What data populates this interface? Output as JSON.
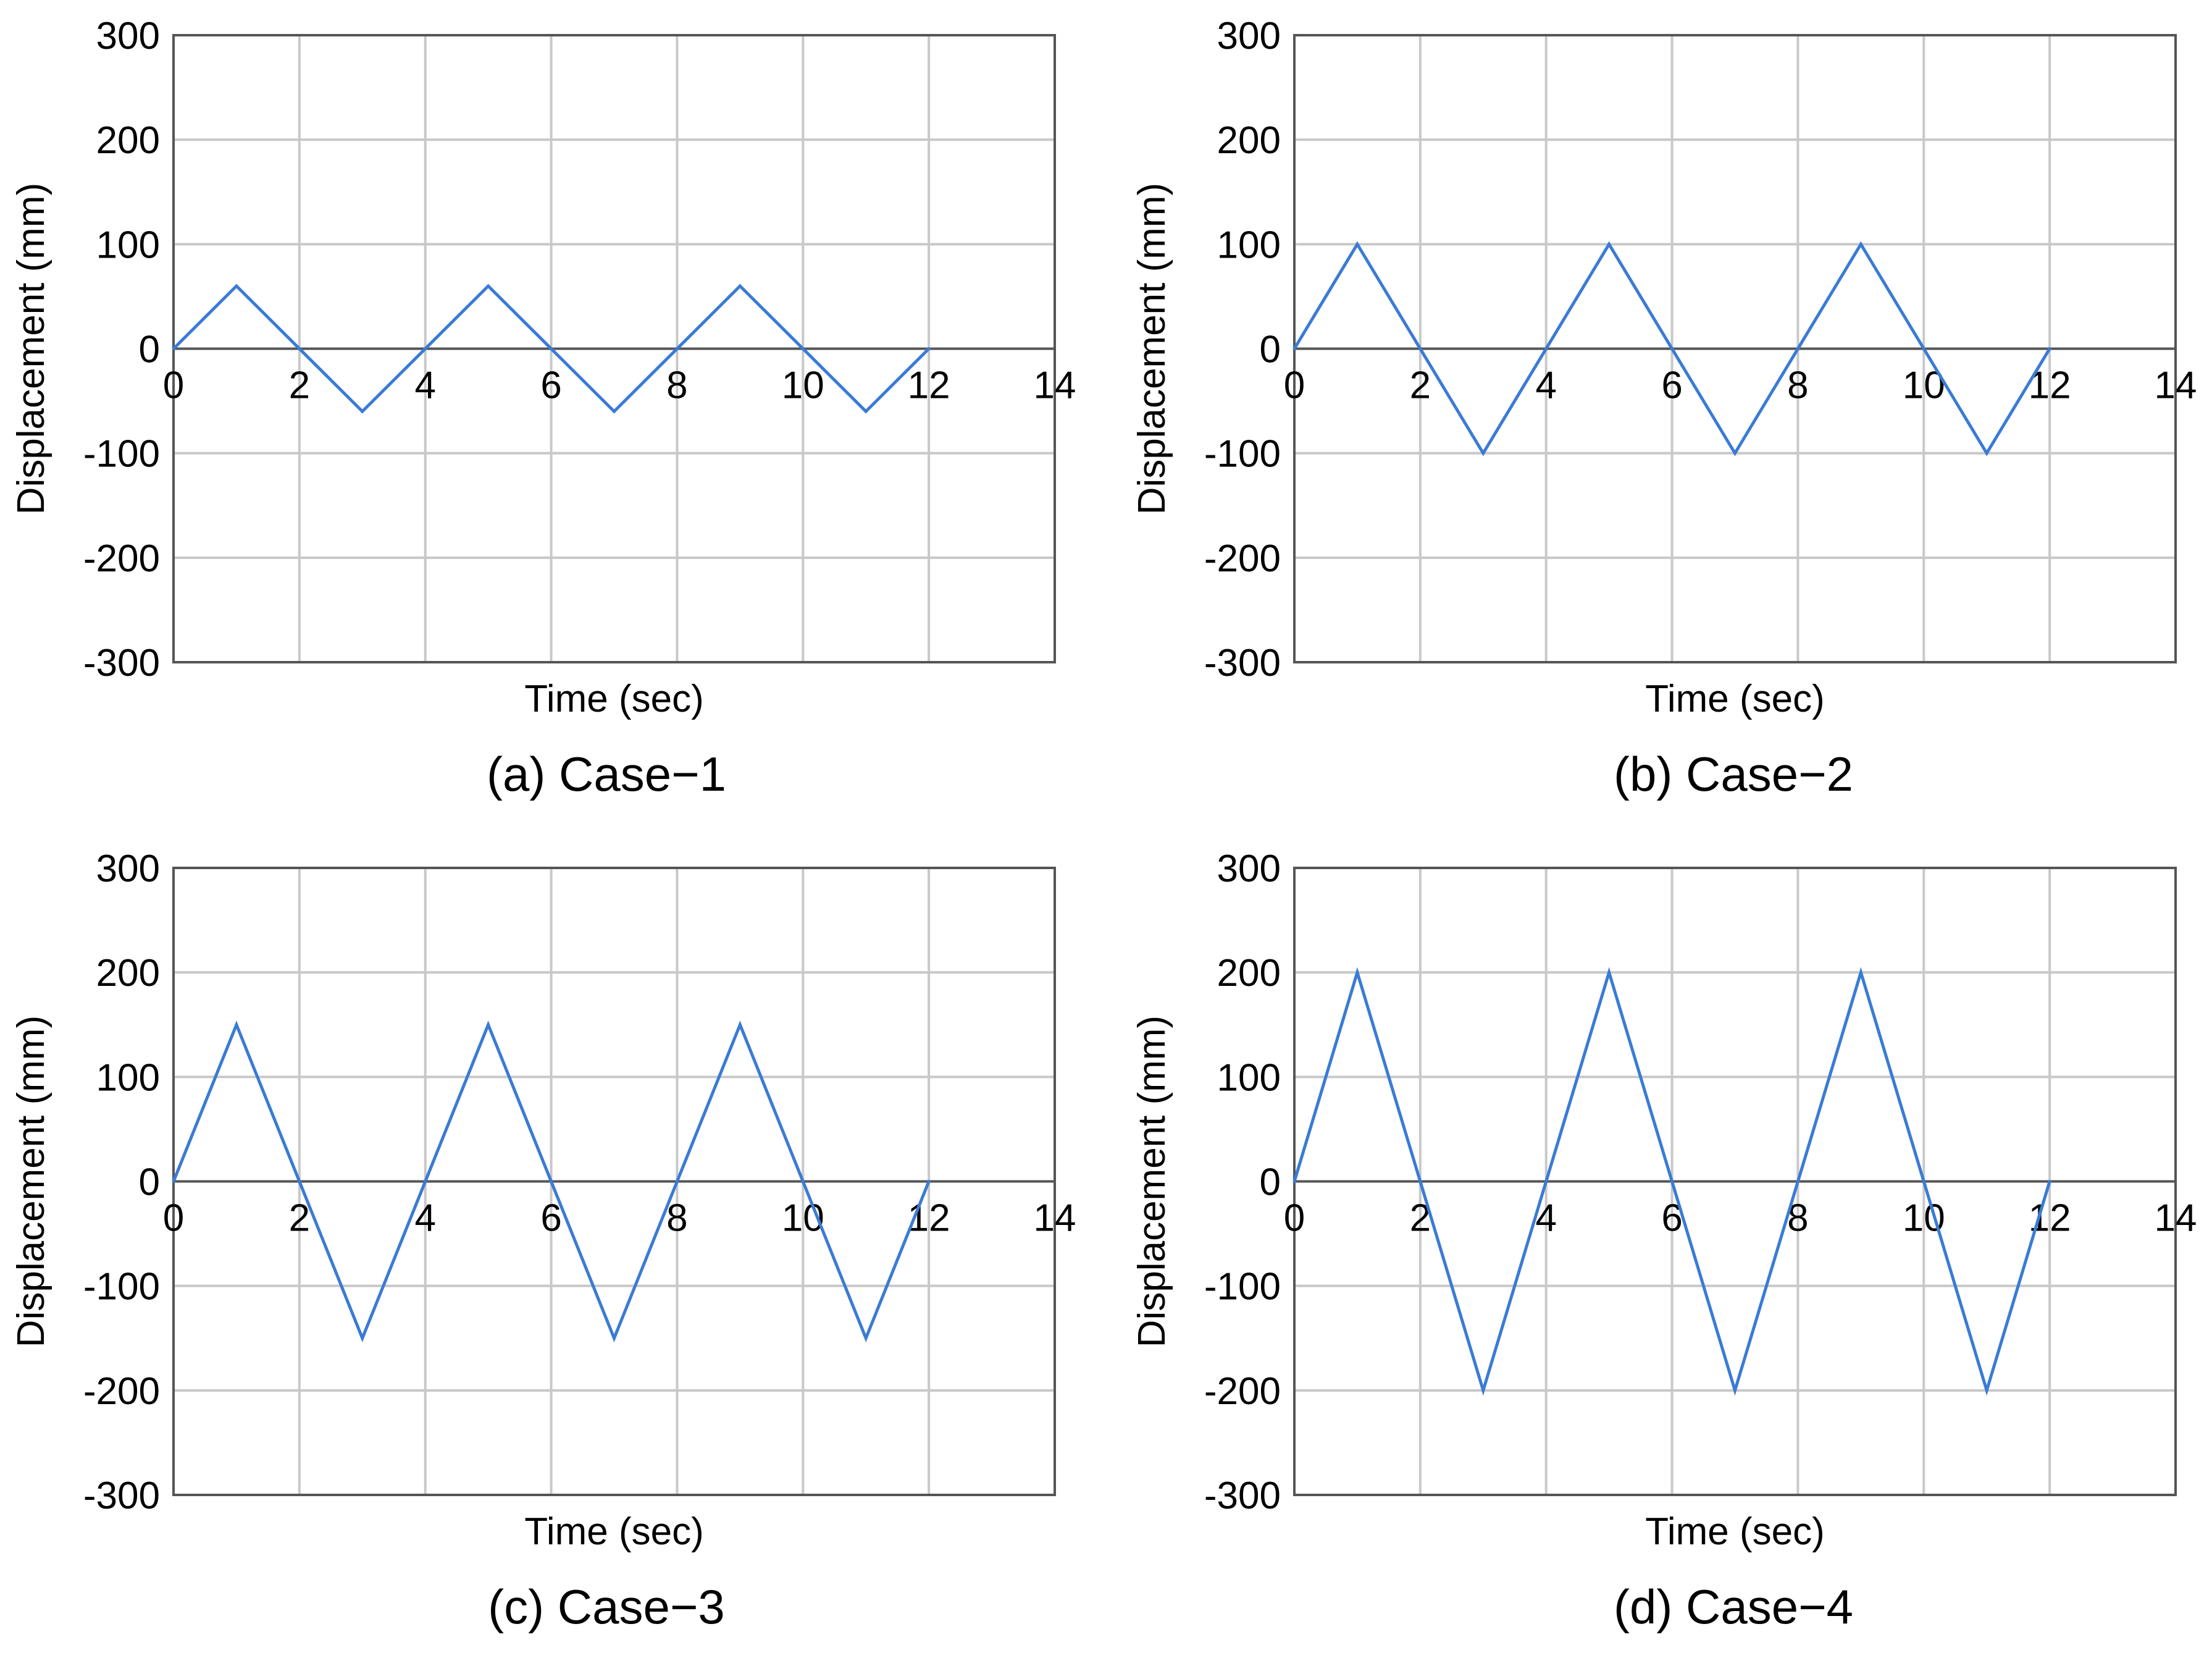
{
  "chart_data": [
    {
      "type": "line",
      "caption": "(a) Case−1",
      "xlabel": "Time (sec)",
      "ylabel": "Displacement (mm)",
      "xlim": [
        0,
        14
      ],
      "ylim": [
        -300,
        300
      ],
      "xticks": [
        "0",
        "2",
        "4",
        "6",
        "8",
        "10",
        "12",
        "14"
      ],
      "yticks": [
        "300",
        "200",
        "100",
        "0",
        "-100",
        "-200",
        "-300"
      ],
      "grid": true,
      "series": [
        {
          "name": "Displacement",
          "color": "#3a7bd5",
          "x": [
            0,
            1,
            3,
            5,
            7,
            9,
            11,
            12
          ],
          "y": [
            0,
            60,
            -60,
            60,
            -60,
            60,
            -60,
            0
          ]
        }
      ]
    },
    {
      "type": "line",
      "caption": "(b) Case−2",
      "xlabel": "Time (sec)",
      "ylabel": "Displacement (mm)",
      "xlim": [
        0,
        14
      ],
      "ylim": [
        -300,
        300
      ],
      "xticks": [
        "0",
        "2",
        "4",
        "6",
        "8",
        "10",
        "12",
        "14"
      ],
      "yticks": [
        "300",
        "200",
        "100",
        "0",
        "-100",
        "-200",
        "-300"
      ],
      "grid": true,
      "series": [
        {
          "name": "Displacement",
          "color": "#3a7bd5",
          "x": [
            0,
            1,
            3,
            5,
            7,
            9,
            11,
            12
          ],
          "y": [
            0,
            100,
            -100,
            100,
            -100,
            100,
            -100,
            0
          ]
        }
      ]
    },
    {
      "type": "line",
      "caption": "(c) Case−3",
      "xlabel": "Time (sec)",
      "ylabel": "Displacement (mm)",
      "xlim": [
        0,
        14
      ],
      "ylim": [
        -300,
        300
      ],
      "xticks": [
        "0",
        "2",
        "4",
        "6",
        "8",
        "10",
        "12",
        "14"
      ],
      "yticks": [
        "300",
        "200",
        "100",
        "0",
        "-100",
        "-200",
        "-300"
      ],
      "grid": true,
      "series": [
        {
          "name": "Displacement",
          "color": "#3a7bd5",
          "x": [
            0,
            1,
            3,
            5,
            7,
            9,
            11,
            12
          ],
          "y": [
            0,
            150,
            -150,
            150,
            -150,
            150,
            -150,
            0
          ]
        }
      ]
    },
    {
      "type": "line",
      "caption": "(d) Case−4",
      "xlabel": "Time (sec)",
      "ylabel": "Displacement (mm)",
      "xlim": [
        0,
        14
      ],
      "ylim": [
        -300,
        300
      ],
      "xticks": [
        "0",
        "2",
        "4",
        "6",
        "8",
        "10",
        "12",
        "14"
      ],
      "yticks": [
        "300",
        "200",
        "100",
        "0",
        "-100",
        "-200",
        "-300"
      ],
      "grid": true,
      "series": [
        {
          "name": "Displacement",
          "color": "#3a7bd5",
          "x": [
            0,
            1,
            3,
            5,
            7,
            9,
            11,
            12
          ],
          "y": [
            0,
            200,
            -200,
            200,
            -200,
            200,
            -200,
            0
          ]
        }
      ]
    }
  ]
}
